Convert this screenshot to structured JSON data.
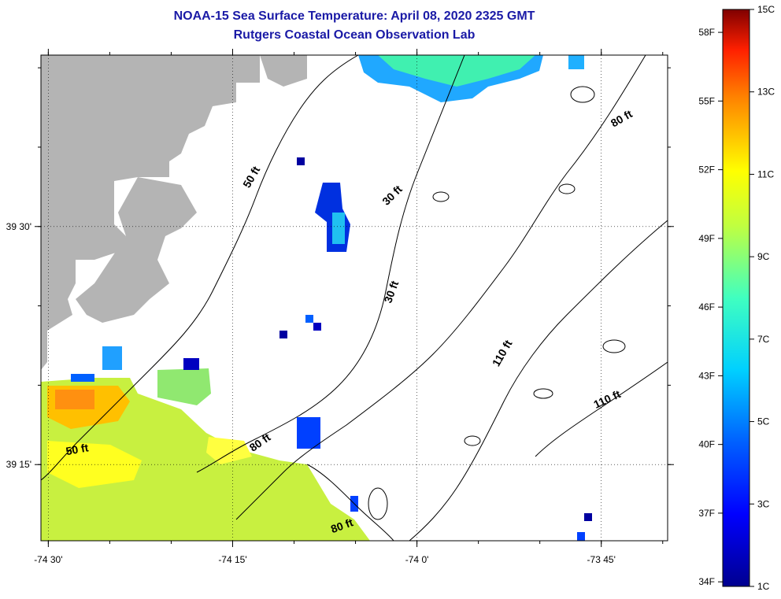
{
  "title": "NOAA-15 Sea Surface Temperature:  April 08, 2020 2325 GMT",
  "subtitle": "Rutgers Coastal Ocean Observation Lab",
  "colors": {
    "land": "#b4b4b4",
    "background": "#ffffff",
    "title": "#1a1aa6",
    "contour": "#000000"
  },
  "chart_data": {
    "type": "heatmap",
    "x_ticks": [
      {
        "value": -74.5,
        "label": "-74 30'"
      },
      {
        "value": -74.25,
        "label": "-74 15'"
      },
      {
        "value": -74.0,
        "label": "-74 0'"
      },
      {
        "value": -73.75,
        "label": "-73 45'"
      }
    ],
    "y_ticks": [
      {
        "value": 39.5,
        "label": "39 30'"
      },
      {
        "value": 39.25,
        "label": "39 15'"
      }
    ],
    "xlim": [
      -74.51,
      -73.66
    ],
    "ylim": [
      39.17,
      39.68
    ],
    "grid": true,
    "contour_labels": [
      {
        "text": "50 ft",
        "lon": -74.22,
        "lat": 39.55,
        "angle": -60
      },
      {
        "text": "50 ft",
        "lon": -74.46,
        "lat": 39.262,
        "angle": -10
      },
      {
        "text": "30 ft",
        "lon": -74.03,
        "lat": 39.53,
        "angle": -45
      },
      {
        "text": "30 ft",
        "lon": -74.03,
        "lat": 39.43,
        "angle": -70
      },
      {
        "text": "80 ft",
        "lon": -73.72,
        "lat": 39.61,
        "angle": -30
      },
      {
        "text": "80 ft",
        "lon": -74.21,
        "lat": 39.27,
        "angle": -35
      },
      {
        "text": "80 ft",
        "lon": -74.1,
        "lat": 39.182,
        "angle": -20
      },
      {
        "text": "110 ft",
        "lon": -73.88,
        "lat": 39.365,
        "angle": -60
      },
      {
        "text": "110 ft",
        "lon": -73.74,
        "lat": 39.315,
        "angle": -25
      }
    ],
    "colorbar": {
      "range_c": [
        1,
        15
      ],
      "c_ticks": [
        {
          "value": 15,
          "label": "15C"
        },
        {
          "value": 13,
          "label": "13C"
        },
        {
          "value": 11,
          "label": "11C"
        },
        {
          "value": 9,
          "label": "9C"
        },
        {
          "value": 7,
          "label": "7C"
        },
        {
          "value": 5,
          "label": "5C"
        },
        {
          "value": 3,
          "label": "3C"
        },
        {
          "value": 1,
          "label": "1C"
        }
      ],
      "f_ticks": [
        {
          "value": 58,
          "label": "58F"
        },
        {
          "value": 55,
          "label": "55F"
        },
        {
          "value": 52,
          "label": "52F"
        },
        {
          "value": 49,
          "label": "49F"
        },
        {
          "value": 46,
          "label": "46F"
        },
        {
          "value": 43,
          "label": "43F"
        },
        {
          "value": 40,
          "label": "40F"
        },
        {
          "value": 37,
          "label": "37F"
        },
        {
          "value": 34,
          "label": "34F"
        }
      ]
    },
    "sst_regions": [
      {
        "name": "southwest-warm-plume",
        "temp_c": 9.5
      },
      {
        "name": "southwest-warm-core",
        "temp_c": 10.7
      },
      {
        "name": "north-edge-cold-band",
        "temp_c": 4.5
      },
      {
        "name": "offshore-cold-patch",
        "temp_c": 3.0
      },
      {
        "name": "southeast-cold-pixels",
        "temp_c": 2.0
      }
    ]
  }
}
